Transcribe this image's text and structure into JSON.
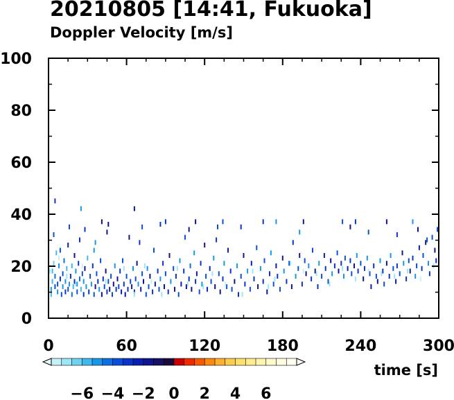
{
  "title": "20210805 [14:41, Fukuoka]",
  "subtitle": "Doppler Velocity [m/s]",
  "chart_data": {
    "type": "scatter",
    "title": "20210805 [14:41, Fukuoka]",
    "subtitle": "Doppler Velocity [m/s]",
    "xlabel": "time [s]",
    "ylabel": "",
    "xlim": [
      0,
      300
    ],
    "ylim": [
      0,
      100
    ],
    "xticks": [
      0,
      60,
      120,
      180,
      240,
      300
    ],
    "yticks": [
      0,
      20,
      40,
      60,
      80,
      100
    ],
    "grid": false,
    "colorbar": {
      "label_values": [
        "−6",
        "−4",
        "−2",
        "0",
        "2",
        "4",
        "6"
      ],
      "range": [
        -8,
        8
      ],
      "colors": [
        "#c8f0f8",
        "#9de6f5",
        "#6fd3f0",
        "#40b8ec",
        "#1a96e6",
        "#0f6ee0",
        "#0a4fd8",
        "#0a33c8",
        "#0a1fb0",
        "#10148c",
        "#151060",
        "#1a0a3a",
        "#cc0000",
        "#ee2a00",
        "#f55a00",
        "#f88a10",
        "#fbb030",
        "#fccc50",
        "#fde070",
        "#feec90",
        "#fff4b0",
        "#fff9cc",
        "#fffce0",
        "#fffef0"
      ]
    },
    "points": [
      [
        2,
        9,
        -6
      ],
      [
        2,
        11,
        -5
      ],
      [
        3,
        14,
        -5.5
      ],
      [
        3,
        18,
        -6
      ],
      [
        4,
        21,
        -6.5
      ],
      [
        5,
        12,
        -4
      ],
      [
        5,
        16,
        -4.5
      ],
      [
        6,
        25,
        -6
      ],
      [
        7,
        10,
        -5
      ],
      [
        7,
        13,
        -4
      ],
      [
        8,
        20,
        -5
      ],
      [
        9,
        15,
        -3
      ],
      [
        9,
        26,
        -4
      ],
      [
        10,
        9,
        -4
      ],
      [
        11,
        12,
        -5
      ],
      [
        11,
        17,
        -3.5
      ],
      [
        12,
        22,
        -4.5
      ],
      [
        13,
        10,
        -3
      ],
      [
        13,
        14,
        -5
      ],
      [
        14,
        19,
        -6
      ],
      [
        15,
        11,
        -4
      ],
      [
        15,
        28,
        -2.5
      ],
      [
        16,
        13,
        -5
      ],
      [
        16,
        35,
        -4
      ],
      [
        17,
        16,
        -3
      ],
      [
        18,
        9,
        -4.5
      ],
      [
        18,
        20,
        -5.5
      ],
      [
        19,
        12,
        -6
      ],
      [
        20,
        14,
        -3
      ],
      [
        20,
        24,
        -2
      ],
      [
        21,
        18,
        -5
      ],
      [
        22,
        10,
        -4
      ],
      [
        22,
        13,
        -5
      ],
      [
        23,
        21,
        -3
      ],
      [
        24,
        15,
        -4.5
      ],
      [
        24,
        30,
        -3
      ],
      [
        25,
        11,
        -6
      ],
      [
        26,
        17,
        -4
      ],
      [
        27,
        9,
        -3
      ],
      [
        27,
        14,
        -5
      ],
      [
        28,
        19,
        -2
      ],
      [
        29,
        12,
        -5
      ],
      [
        30,
        23,
        -6
      ],
      [
        31,
        10,
        -3
      ],
      [
        32,
        16,
        -4
      ],
      [
        33,
        13,
        -5
      ],
      [
        34,
        20,
        -3
      ],
      [
        35,
        9,
        -4
      ],
      [
        35,
        26,
        -5
      ],
      [
        36,
        12,
        -2
      ],
      [
        37,
        17,
        -4
      ],
      [
        38,
        14,
        -3
      ],
      [
        39,
        11,
        -5
      ],
      [
        40,
        22,
        -4
      ],
      [
        41,
        9,
        -2
      ],
      [
        42,
        15,
        -3
      ],
      [
        43,
        12,
        -4
      ],
      [
        44,
        18,
        -1.5
      ],
      [
        45,
        10,
        -3
      ],
      [
        45,
        33,
        -2
      ],
      [
        46,
        14,
        -4
      ],
      [
        47,
        11,
        -2
      ],
      [
        48,
        16,
        -3.5
      ],
      [
        49,
        9,
        -4
      ],
      [
        50,
        13,
        -2
      ],
      [
        51,
        20,
        -5
      ],
      [
        52,
        11,
        -3
      ],
      [
        53,
        15,
        -2
      ],
      [
        54,
        12,
        -4
      ],
      [
        55,
        18,
        -3
      ],
      [
        56,
        10,
        -2.5
      ],
      [
        57,
        22,
        -4
      ],
      [
        58,
        13,
        -3
      ],
      [
        59,
        9,
        -2
      ],
      [
        60,
        16,
        -4
      ],
      [
        61,
        11,
        -3
      ],
      [
        62,
        31,
        -2
      ],
      [
        63,
        14,
        -4
      ],
      [
        64,
        12,
        -2.5
      ],
      [
        65,
        19,
        -5
      ],
      [
        66,
        10,
        -3
      ],
      [
        67,
        15,
        -4
      ],
      [
        68,
        21,
        -2
      ],
      [
        69,
        13,
        -5
      ],
      [
        70,
        29,
        -3
      ],
      [
        71,
        11,
        -2.5
      ],
      [
        72,
        17,
        -4
      ],
      [
        73,
        14,
        -2
      ],
      [
        75,
        9,
        -3.5
      ],
      [
        76,
        19,
        -5
      ],
      [
        77,
        12,
        -4
      ],
      [
        78,
        16,
        -2
      ],
      [
        80,
        10,
        -3
      ],
      [
        81,
        26,
        -4
      ],
      [
        82,
        13,
        -2.5
      ],
      [
        84,
        18,
        -3
      ],
      [
        85,
        11,
        -4
      ],
      [
        86,
        15,
        -5
      ],
      [
        88,
        21,
        -3
      ],
      [
        89,
        12,
        -2
      ],
      [
        90,
        17,
        -4
      ],
      [
        92,
        10,
        -3
      ],
      [
        93,
        24,
        -2
      ],
      [
        94,
        14,
        -5
      ],
      [
        96,
        19,
        -4
      ],
      [
        97,
        11,
        -2
      ],
      [
        98,
        16,
        -3
      ],
      [
        100,
        9,
        -4
      ],
      [
        101,
        22,
        -5
      ],
      [
        102,
        13,
        -2.5
      ],
      [
        104,
        18,
        -3
      ],
      [
        105,
        31,
        -4
      ],
      [
        106,
        12,
        -2
      ],
      [
        108,
        15,
        -3
      ],
      [
        109,
        20,
        -4.5
      ],
      [
        110,
        11,
        -2
      ],
      [
        112,
        25,
        -5
      ],
      [
        113,
        14,
        -3
      ],
      [
        114,
        17,
        -2.5
      ],
      [
        116,
        10,
        -4
      ],
      [
        117,
        21,
        -3
      ],
      [
        118,
        13,
        -5
      ],
      [
        120,
        28,
        -2
      ],
      [
        121,
        16,
        -4
      ],
      [
        122,
        11,
        -3
      ],
      [
        124,
        19,
        -2.5
      ],
      [
        125,
        14,
        -4
      ],
      [
        127,
        23,
        -5
      ],
      [
        128,
        12,
        -2
      ],
      [
        129,
        30,
        -3
      ],
      [
        131,
        17,
        -4
      ],
      [
        132,
        10,
        -2
      ],
      [
        134,
        15,
        -3
      ],
      [
        135,
        21,
        -5
      ],
      [
        137,
        12,
        -4
      ],
      [
        138,
        26,
        -2.5
      ],
      [
        140,
        18,
        -3
      ],
      [
        141,
        11,
        -4
      ],
      [
        143,
        14,
        -2
      ],
      [
        145,
        20,
        -5
      ],
      [
        146,
        9,
        -3
      ],
      [
        148,
        16,
        -4
      ],
      [
        150,
        24,
        -2
      ],
      [
        151,
        13,
        -3
      ],
      [
        153,
        18,
        -5
      ],
      [
        155,
        11,
        -4
      ],
      [
        156,
        21,
        -2.5
      ],
      [
        158,
        15,
        -3
      ],
      [
        160,
        27,
        -4
      ],
      [
        161,
        12,
        -2
      ],
      [
        163,
        19,
        -5
      ],
      [
        165,
        14,
        -3
      ],
      [
        166,
        22,
        -4
      ],
      [
        168,
        10,
        -2
      ],
      [
        170,
        17,
        -3
      ],
      [
        171,
        25,
        -5
      ],
      [
        173,
        13,
        -4
      ],
      [
        175,
        20,
        -2.5
      ],
      [
        176,
        16,
        -3
      ],
      [
        178,
        11,
        -4
      ],
      [
        180,
        23,
        -2
      ],
      [
        181,
        18,
        -5
      ],
      [
        183,
        14,
        -3
      ],
      [
        185,
        21,
        -4
      ],
      [
        187,
        12,
        -2
      ],
      [
        188,
        29,
        -3
      ],
      [
        190,
        16,
        -5
      ],
      [
        192,
        19,
        -4
      ],
      [
        193,
        24,
        -2.5
      ],
      [
        195,
        13,
        -3
      ],
      [
        197,
        22,
        -4
      ],
      [
        198,
        17,
        -2
      ],
      [
        200,
        20,
        -5
      ],
      [
        202,
        15,
        -3
      ],
      [
        203,
        26,
        -4
      ],
      [
        205,
        18,
        -2
      ],
      [
        207,
        12,
        -3
      ],
      [
        208,
        21,
        -5
      ],
      [
        210,
        16,
        -4
      ],
      [
        212,
        24,
        -2.5
      ],
      [
        213,
        19,
        -3
      ],
      [
        215,
        14,
        -4
      ],
      [
        217,
        22,
        -2
      ],
      [
        218,
        17,
        -5
      ],
      [
        220,
        20,
        -3
      ],
      [
        222,
        25,
        -4
      ],
      [
        223,
        18,
        -2
      ],
      [
        225,
        21,
        -3
      ],
      [
        227,
        16,
        -5
      ],
      [
        228,
        23,
        -4
      ],
      [
        230,
        19,
        -2.5
      ],
      [
        232,
        22,
        -3
      ],
      [
        233,
        17,
        -4
      ],
      [
        235,
        20,
        -2
      ],
      [
        237,
        24,
        -5
      ],
      [
        238,
        18,
        -3
      ],
      [
        240,
        21,
        -4
      ],
      [
        242,
        15,
        -2
      ],
      [
        243,
        19,
        -3
      ],
      [
        245,
        23,
        -5
      ],
      [
        247,
        17,
        -4
      ],
      [
        248,
        12,
        -2.5
      ],
      [
        250,
        20,
        -3
      ],
      [
        252,
        16,
        -4
      ],
      [
        253,
        14,
        -2
      ],
      [
        255,
        22,
        -5
      ],
      [
        257,
        18,
        -3
      ],
      [
        258,
        13,
        -4
      ],
      [
        260,
        21,
        -2
      ],
      [
        262,
        16,
        -3
      ],
      [
        263,
        24,
        -5
      ],
      [
        265,
        19,
        -4
      ],
      [
        267,
        14,
        -2.5
      ],
      [
        268,
        20,
        -3
      ],
      [
        270,
        17,
        -4
      ],
      [
        272,
        25,
        -2
      ],
      [
        273,
        21,
        -5
      ],
      [
        275,
        15,
        -3
      ],
      [
        277,
        22,
        -4
      ],
      [
        278,
        18,
        -2
      ],
      [
        280,
        23,
        -3
      ],
      [
        282,
        16,
        -5
      ],
      [
        283,
        20,
        -4
      ],
      [
        285,
        27,
        -2.5
      ],
      [
        287,
        19,
        -3
      ],
      [
        288,
        24,
        -4
      ],
      [
        290,
        29,
        -2
      ],
      [
        292,
        21,
        -5
      ],
      [
        293,
        17,
        -3
      ],
      [
        295,
        31,
        -4
      ],
      [
        297,
        26,
        -2
      ],
      [
        298,
        22,
        -3
      ],
      [
        299,
        34,
        -4
      ],
      [
        1,
        18,
        -7
      ],
      [
        8,
        23,
        -7.5
      ],
      [
        14,
        16,
        -7
      ],
      [
        21,
        13,
        -7
      ],
      [
        26,
        20,
        -7.5
      ],
      [
        44,
        14,
        -7
      ],
      [
        58,
        19,
        -7
      ],
      [
        66,
        9,
        -7
      ],
      [
        74,
        20,
        -7
      ],
      [
        79,
        14,
        -7.5
      ],
      [
        87,
        9,
        -7
      ],
      [
        99,
        19,
        -7
      ],
      [
        107,
        13,
        -7
      ],
      [
        119,
        12,
        -7
      ],
      [
        126,
        17,
        -7
      ],
      [
        136,
        13,
        -7.5
      ],
      [
        149,
        9,
        -7
      ],
      [
        157,
        18,
        -7
      ],
      [
        169,
        12,
        -7
      ],
      [
        174,
        15,
        -7
      ],
      [
        186,
        21,
        -7
      ],
      [
        196,
        18,
        -7.5
      ],
      [
        206,
        17,
        -7
      ],
      [
        216,
        13,
        -7
      ],
      [
        226,
        19,
        -7
      ],
      [
        236,
        15,
        -7
      ],
      [
        246,
        18,
        -7.5
      ],
      [
        256,
        17,
        -7
      ],
      [
        266,
        16,
        -7
      ],
      [
        276,
        18,
        -7
      ],
      [
        286,
        15,
        -7.5
      ],
      [
        296,
        20,
        -7
      ],
      [
        5,
        45,
        -3
      ],
      [
        25,
        42,
        -5
      ],
      [
        41,
        37,
        -1
      ],
      [
        66,
        42,
        -2
      ],
      [
        90,
        37,
        -3
      ],
      [
        113,
        37,
        -2
      ],
      [
        134,
        37,
        -4
      ],
      [
        165,
        37,
        -3
      ],
      [
        175,
        37,
        -5
      ],
      [
        196,
        37,
        -2
      ],
      [
        226,
        37,
        -4
      ],
      [
        236,
        37,
        -3
      ],
      [
        260,
        37,
        -2
      ],
      [
        280,
        37,
        -5
      ],
      [
        300,
        37,
        -4
      ],
      [
        4,
        32,
        -4
      ],
      [
        28,
        34,
        -3
      ],
      [
        36,
        29,
        -5
      ],
      [
        46,
        36,
        -2
      ],
      [
        72,
        35,
        -4
      ],
      [
        86,
        36,
        -3
      ],
      [
        108,
        34,
        -2
      ],
      [
        130,
        35,
        -4
      ],
      [
        148,
        35,
        -3
      ],
      [
        193,
        33,
        -5
      ],
      [
        232,
        35,
        -2
      ],
      [
        246,
        33,
        -4
      ],
      [
        268,
        32,
        -3
      ],
      [
        284,
        34,
        -2
      ],
      [
        291,
        30,
        -4
      ]
    ]
  }
}
